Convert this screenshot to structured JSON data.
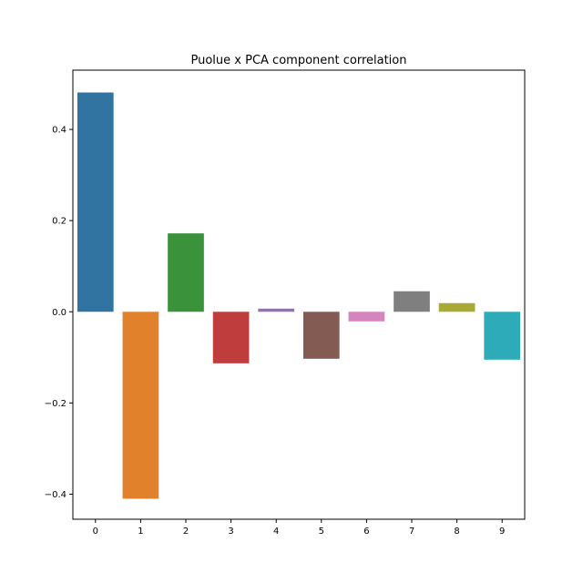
{
  "chart_data": {
    "type": "bar",
    "title": "Puolue x PCA component correlation",
    "xlabel": "",
    "ylabel": "",
    "categories": [
      "0",
      "1",
      "2",
      "3",
      "4",
      "5",
      "6",
      "7",
      "8",
      "9"
    ],
    "values": [
      0.481,
      -0.41,
      0.172,
      -0.113,
      0.007,
      -0.103,
      -0.021,
      0.045,
      0.019,
      -0.105
    ],
    "colors": [
      "#3274a1",
      "#e1812c",
      "#3a923a",
      "#c03d3e",
      "#9372b2",
      "#845b53",
      "#d684bd",
      "#7f7f7f",
      "#a9aa35",
      "#2eabb8"
    ],
    "ylim": [
      -0.455,
      0.53
    ],
    "yticks": [
      -0.4,
      -0.2,
      0.0,
      0.2,
      0.4
    ],
    "ytick_labels": [
      "−0.4",
      "−0.2",
      "0.0",
      "0.2",
      "0.4"
    ],
    "grid": false,
    "legend": "none"
  }
}
